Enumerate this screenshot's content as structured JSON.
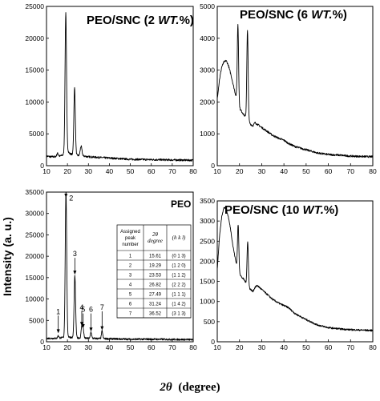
{
  "figure": {
    "ylabel": "Intensity (a. u.)",
    "xlabel_symbol": "2θ",
    "xlabel_unit": "(degree)"
  },
  "chart_data": [
    {
      "type": "line",
      "title": "PEO/SNC (2 WT.%)",
      "title_parts": [
        "PEO/SNC (2 ",
        "WT.",
        "%)"
      ],
      "xlim": [
        10,
        80
      ],
      "ylim": [
        0,
        25000
      ],
      "xticks": [
        10,
        20,
        30,
        40,
        50,
        60,
        70,
        80
      ],
      "yticks": [
        0,
        5000,
        10000,
        15000,
        20000,
        25000
      ],
      "series": [
        {
          "color": "#000000",
          "baseline": [
            [
              10,
              1500
            ],
            [
              12,
              1400
            ],
            [
              14,
              1400
            ],
            [
              16,
              1450
            ],
            [
              18,
              1700
            ],
            [
              19,
              2200
            ],
            [
              20,
              2500
            ],
            [
              21,
              1900
            ],
            [
              22,
              1800
            ],
            [
              25,
              1600
            ],
            [
              28,
              1500
            ],
            [
              30,
              1400
            ],
            [
              35,
              1300
            ],
            [
              40,
              1200
            ],
            [
              45,
              1100
            ],
            [
              50,
              1000
            ],
            [
              60,
              950
            ],
            [
              70,
              900
            ],
            [
              80,
              850
            ]
          ],
          "peaks": [
            [
              19.2,
              21800,
              0.35
            ],
            [
              23.4,
              10500,
              0.35
            ],
            [
              26.5,
              1500,
              0.4
            ],
            [
              15.3,
              500,
              0.4
            ]
          ]
        }
      ]
    },
    {
      "type": "line",
      "title": "PEO/SNC (6 WT.%)",
      "title_parts": [
        "PEO/SNC (6 ",
        "WT.",
        "%)"
      ],
      "xlim": [
        10,
        80
      ],
      "ylim": [
        0,
        5000
      ],
      "xticks": [
        10,
        20,
        30,
        40,
        50,
        60,
        70,
        80
      ],
      "yticks": [
        0,
        1000,
        2000,
        3000,
        4000,
        5000
      ],
      "series": [
        {
          "color": "#000000",
          "baseline": [
            [
              10,
              2100
            ],
            [
              11,
              2700
            ],
            [
              12,
              3100
            ],
            [
              13,
              3250
            ],
            [
              14,
              3300
            ],
            [
              15,
              3150
            ],
            [
              16,
              2900
            ],
            [
              17,
              2600
            ],
            [
              18,
              2300
            ],
            [
              19,
              2000
            ],
            [
              20,
              1800
            ],
            [
              21,
              1700
            ],
            [
              22,
              1600
            ],
            [
              23,
              1500
            ],
            [
              24,
              1400
            ],
            [
              25,
              1300
            ],
            [
              26,
              1250
            ],
            [
              27,
              1350
            ],
            [
              28,
              1300
            ],
            [
              30,
              1200
            ],
            [
              32,
              1100
            ],
            [
              35,
              950
            ],
            [
              38,
              850
            ],
            [
              40,
              800
            ],
            [
              42,
              700
            ],
            [
              45,
              600
            ],
            [
              50,
              500
            ],
            [
              55,
              400
            ],
            [
              60,
              350
            ],
            [
              65,
              330
            ],
            [
              70,
              300
            ],
            [
              75,
              290
            ],
            [
              80,
              280
            ]
          ],
          "peaks": [
            [
              19.3,
              2500,
              0.3
            ],
            [
              23.6,
              2800,
              0.3
            ]
          ]
        }
      ]
    },
    {
      "type": "line",
      "title": "PEO",
      "title_parts": [
        "PEO",
        "",
        ""
      ],
      "xlim": [
        10,
        80
      ],
      "ylim": [
        0,
        35000
      ],
      "xticks": [
        10,
        20,
        30,
        40,
        50,
        60,
        70,
        80
      ],
      "yticks": [
        0,
        5000,
        10000,
        15000,
        20000,
        25000,
        30000,
        35000
      ],
      "series": [
        {
          "color": "#000000",
          "baseline": [
            [
              10,
              800
            ],
            [
              15,
              800
            ],
            [
              18,
              1000
            ],
            [
              20,
              1200
            ],
            [
              22,
              1000
            ],
            [
              25,
              900
            ],
            [
              30,
              800
            ],
            [
              40,
              700
            ],
            [
              50,
              600
            ],
            [
              60,
              600
            ],
            [
              70,
              550
            ],
            [
              80,
              500
            ]
          ],
          "peaks": [
            [
              15.61,
              600,
              0.3
            ],
            [
              19.29,
              34000,
              0.35
            ],
            [
              23.53,
              14500,
              0.35
            ],
            [
              26.82,
              2800,
              0.3
            ],
            [
              27.49,
              2200,
              0.3
            ],
            [
              31.24,
              1500,
              0.3
            ],
            [
              36.52,
              1800,
              0.3
            ]
          ]
        }
      ],
      "annotations": [
        {
          "label": "1",
          "x": 15.61,
          "y_tip": 1800,
          "y_text": 6500
        },
        {
          "label": "2",
          "x": 19.29,
          "y_tip": 33500,
          "y_text": 33000
        },
        {
          "label": "3",
          "x": 23.53,
          "y_tip": 15500,
          "y_text": 20000
        },
        {
          "label": "4",
          "x": 26.82,
          "y_tip": 3500,
          "y_text": 7500
        },
        {
          "label": "5",
          "x": 27.49,
          "y_tip": 3000,
          "y_text": 7000
        },
        {
          "label": "6",
          "x": 31.24,
          "y_tip": 2200,
          "y_text": 7000
        },
        {
          "label": "7",
          "x": 36.52,
          "y_tip": 2500,
          "y_text": 7500
        }
      ],
      "table": {
        "headers": [
          [
            "Assigned",
            "peak",
            "number"
          ],
          [
            "2θ",
            "degree"
          ],
          [
            "(h k l)"
          ]
        ],
        "rows": [
          [
            "1",
            "15.61",
            "(0 1 3)"
          ],
          [
            "2",
            "19.29",
            "(1 2 0)"
          ],
          [
            "3",
            "23.53",
            "(1 1 2)"
          ],
          [
            "4",
            "26.82",
            "(2 2 2)"
          ],
          [
            "5",
            "27.49",
            "(1 1 1)"
          ],
          [
            "6",
            "31.24",
            "(1 4 2)"
          ],
          [
            "7",
            "36.52",
            "(3 1 3)"
          ]
        ]
      }
    },
    {
      "type": "line",
      "title": "PEO/SNC (10 WT.%)",
      "title_parts": [
        "PEO/SNC (10 ",
        "WT.",
        "%)"
      ],
      "xlim": [
        10,
        80
      ],
      "ylim": [
        0,
        3500
      ],
      "xticks": [
        10,
        20,
        30,
        40,
        50,
        60,
        70,
        80
      ],
      "yticks": [
        0,
        500,
        1000,
        1500,
        2000,
        2500,
        3000,
        3500
      ],
      "series": [
        {
          "color": "#000000",
          "baseline": [
            [
              10,
              1800
            ],
            [
              11,
              2600
            ],
            [
              12,
              3100
            ],
            [
              13,
              3350
            ],
            [
              14,
              3300
            ],
            [
              15,
              3100
            ],
            [
              16,
              2800
            ],
            [
              17,
              2400
            ],
            [
              18,
              2100
            ],
            [
              19,
              1800
            ],
            [
              20,
              1700
            ],
            [
              21,
              1600
            ],
            [
              22,
              1550
            ],
            [
              23,
              1450
            ],
            [
              24,
              1350
            ],
            [
              25,
              1300
            ],
            [
              26,
              1250
            ],
            [
              27,
              1350
            ],
            [
              28,
              1400
            ],
            [
              29,
              1350
            ],
            [
              30,
              1300
            ],
            [
              32,
              1200
            ],
            [
              35,
              1050
            ],
            [
              38,
              950
            ],
            [
              40,
              900
            ],
            [
              42,
              850
            ],
            [
              45,
              700
            ],
            [
              50,
              550
            ],
            [
              55,
              420
            ],
            [
              60,
              350
            ],
            [
              65,
              320
            ],
            [
              70,
              300
            ],
            [
              75,
              290
            ],
            [
              80,
              280
            ]
          ],
          "peaks": [
            [
              19.4,
              1150,
              0.3
            ],
            [
              23.7,
              1100,
              0.3
            ]
          ]
        }
      ]
    }
  ]
}
